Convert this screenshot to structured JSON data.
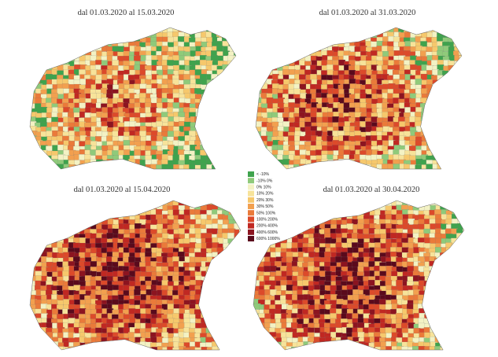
{
  "panels": [
    {
      "title": "dal 01.03.2020 al 15.03.2020"
    },
    {
      "title": "dal 01.03.2020 al 31.03.2020"
    },
    {
      "title": "dal 01.03.2020 al 15.04.2020"
    },
    {
      "title": "dal 01.03.2020 al 30.04.2020"
    }
  ],
  "legend": {
    "items": [
      {
        "label": "< -10%",
        "color": "#3fa34d"
      },
      {
        "label": "-10%  0%",
        "color": "#8fca7a"
      },
      {
        "label": "0%  10%",
        "color": "#f3f2c4"
      },
      {
        "label": "10%  20%",
        "color": "#f7e39a"
      },
      {
        "label": "20%  30%",
        "color": "#f6c86c"
      },
      {
        "label": "30%  50%",
        "color": "#f2a04f"
      },
      {
        "label": "50%  100%",
        "color": "#ea7a3a"
      },
      {
        "label": "100%  200%",
        "color": "#dc4a2a"
      },
      {
        "label": "200%  400%",
        "color": "#c02822"
      },
      {
        "label": "400%  600%",
        "color": "#8c1420"
      },
      {
        "label": "600%  1000%",
        "color": "#5a0a1c"
      }
    ]
  }
}
